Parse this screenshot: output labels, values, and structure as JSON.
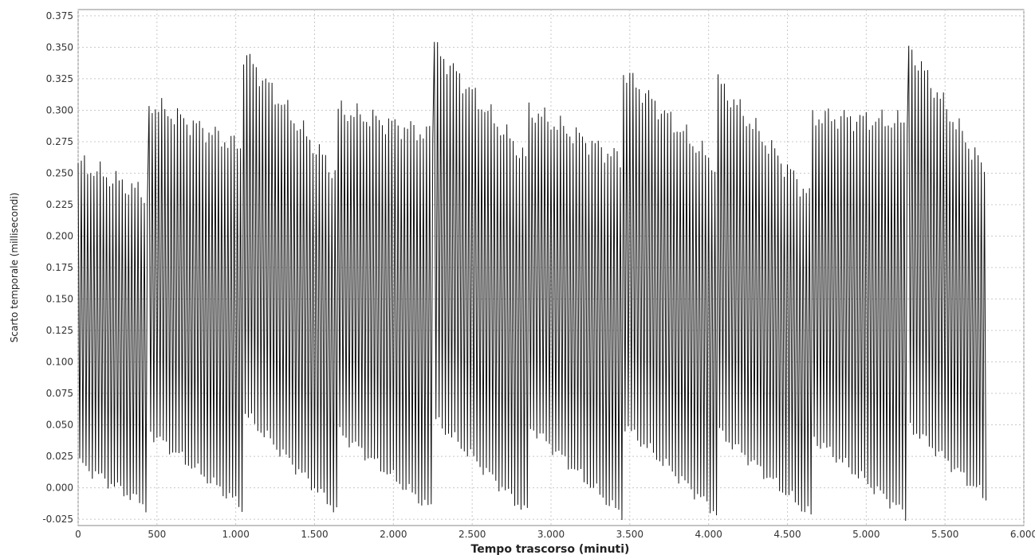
{
  "chart_data": {
    "type": "line",
    "title": "",
    "xlabel": "Tempo trascorso (minuti)",
    "ylabel": "Scarto temporale (millisecondi)",
    "xlim": [
      0,
      6000
    ],
    "ylim": [
      -0.03,
      0.38
    ],
    "x_ticks": [
      0,
      500,
      1000,
      1500,
      2000,
      2500,
      3000,
      3500,
      4000,
      4500,
      5000,
      5500,
      6000
    ],
    "x_tick_labels": [
      "0",
      "500",
      "1.000",
      "1.500",
      "2.000",
      "2.500",
      "3.000",
      "3.500",
      "4.000",
      "4.500",
      "5.000",
      "5.500",
      "6.000"
    ],
    "y_ticks": [
      -0.025,
      0,
      0.025,
      0.05,
      0.075,
      0.1,
      0.125,
      0.15,
      0.175,
      0.2,
      0.225,
      0.25,
      0.275,
      0.3,
      0.325,
      0.35,
      0.375
    ],
    "y_tick_labels": [
      "-0.025",
      "0.000",
      "0.025",
      "0.050",
      "0.075",
      "0.100",
      "0.125",
      "0.150",
      "0.175",
      "0.200",
      "0.225",
      "0.250",
      "0.275",
      "0.300",
      "0.325",
      "0.350",
      "0.375"
    ],
    "grid": true,
    "legend": "none",
    "line_color": "#111111",
    "segments": [
      {
        "x_start": 0,
        "x_end": 440,
        "peak_start": 0.258,
        "peak_end": 0.232,
        "trough_start": 0.02,
        "trough_end": -0.015
      },
      {
        "x_start": 450,
        "x_end": 1040,
        "peak_start": 0.305,
        "peak_end": 0.27,
        "trough_start": 0.045,
        "trough_end": -0.015
      },
      {
        "x_start": 1050,
        "x_end": 1640,
        "peak_start": 0.345,
        "peak_end": 0.248,
        "trough_start": 0.06,
        "trough_end": -0.018
      },
      {
        "x_start": 1650,
        "x_end": 2250,
        "peak_start": 0.3,
        "peak_end": 0.28,
        "trough_start": 0.045,
        "trough_end": -0.018
      },
      {
        "x_start": 2260,
        "x_end": 2850,
        "peak_start": 0.35,
        "peak_end": 0.26,
        "trough_start": 0.055,
        "trough_end": -0.02
      },
      {
        "x_start": 2860,
        "x_end": 3450,
        "peak_start": 0.3,
        "peak_end": 0.26,
        "trough_start": 0.05,
        "trough_end": -0.022
      },
      {
        "x_start": 3460,
        "x_end": 4050,
        "peak_start": 0.33,
        "peak_end": 0.255,
        "trough_start": 0.05,
        "trough_end": -0.02
      },
      {
        "x_start": 4060,
        "x_end": 4650,
        "peak_start": 0.322,
        "peak_end": 0.23,
        "trough_start": 0.045,
        "trough_end": -0.022
      },
      {
        "x_start": 4660,
        "x_end": 5260,
        "peak_start": 0.295,
        "peak_end": 0.29,
        "trough_start": 0.04,
        "trough_end": -0.022
      },
      {
        "x_start": 5270,
        "x_end": 5760,
        "peak_start": 0.35,
        "peak_end": 0.25,
        "trough_start": 0.05,
        "trough_end": -0.008
      }
    ],
    "oscillation_period_minutes": 20
  }
}
